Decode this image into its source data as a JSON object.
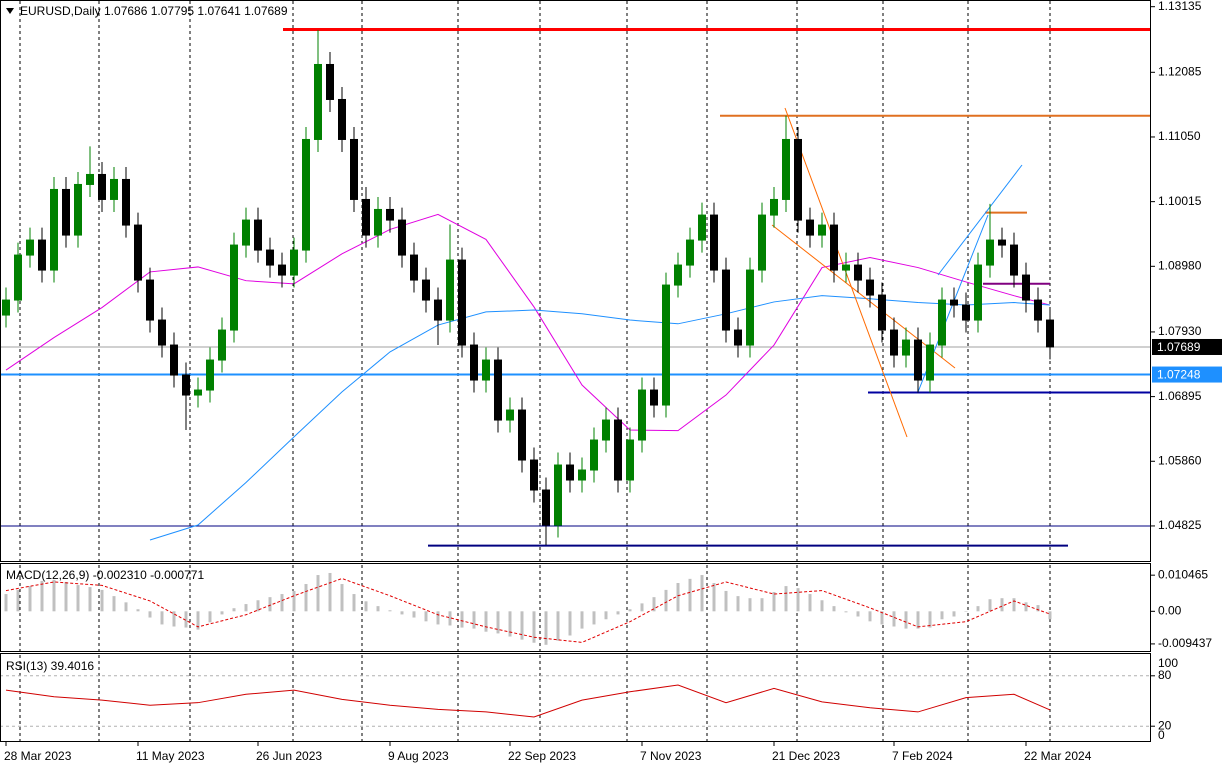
{
  "chart_data": [
    {
      "type": "candlestick",
      "title": "EURUSD,Daily  1.07686 1.07795 1.07641 1.07689",
      "categories": [
        "28 Mar 2023",
        null,
        null,
        null,
        null,
        null,
        null,
        null,
        null,
        null,
        null,
        "11 May 2023",
        null,
        null,
        null,
        null,
        null,
        null,
        null,
        null,
        null,
        "26 Jun 2023",
        null,
        null,
        null,
        null,
        null,
        null,
        null,
        null,
        null,
        null,
        "9 Aug 2023",
        null,
        null,
        null,
        null,
        null,
        null,
        null,
        null,
        null,
        "22 Sep 2023",
        null,
        null,
        null,
        null,
        null,
        null,
        null,
        null,
        null,
        null,
        "7 Nov 2023",
        null,
        null,
        null,
        null,
        null,
        null,
        null,
        null,
        null,
        null,
        "21 Dec 2023",
        null,
        null,
        null,
        null,
        null,
        null,
        null,
        null,
        null,
        "7 Feb 2024",
        null,
        null,
        null,
        null,
        null,
        null,
        null,
        null,
        null,
        null,
        "22 Mar 2024",
        null,
        null
      ],
      "open": [
        1.082,
        1.0844,
        1.0916,
        1.094,
        1.0892,
        1.1021,
        1.0948,
        1.1029,
        1.1045,
        1.1005,
        1.1037,
        1.0964,
        1.0876,
        1.0812,
        1.0772,
        1.0724,
        1.0692,
        1.07,
        1.0748,
        1.0796,
        1.0932,
        1.0972,
        1.0924,
        1.09,
        1.0884,
        1.0924,
        1.1101,
        1.1221,
        1.1165,
        1.1101,
        1.1005,
        1.0948,
        1.0989,
        1.0972,
        1.0916,
        1.0876,
        1.0844,
        1.0812,
        1.0908,
        1.0772,
        1.0716,
        1.0748,
        1.0652,
        1.0668,
        1.0588,
        1.054,
        1.0484,
        1.058,
        1.0556,
        1.0572,
        1.062,
        1.0652,
        1.0556,
        1.062,
        1.07,
        1.0676,
        1.0868,
        1.09,
        1.094,
        1.098,
        1.0892,
        1.0796,
        1.0772,
        1.0892,
        1.098,
        1.1005,
        1.1101,
        1.0972,
        1.0948,
        1.0964,
        1.0892,
        1.09,
        1.0876,
        1.0852,
        1.0796,
        1.0756,
        1.078,
        1.0716,
        1.0772,
        1.0844,
        1.0836,
        1.0812,
        1.09,
        1.094,
        1.0932,
        1.0884,
        1.0844,
        1.0812
      ],
      "high": [
        1.0864,
        1.0936,
        1.096,
        1.096,
        1.1041,
        1.1041,
        1.1049,
        1.109,
        1.1065,
        1.1057,
        1.1057,
        1.0984,
        1.0896,
        1.0832,
        1.0792,
        1.0744,
        1.072,
        1.0768,
        1.0816,
        1.0952,
        1.0992,
        1.0992,
        1.0944,
        1.092,
        1.0944,
        1.1121,
        1.1276,
        1.1241,
        1.1185,
        1.1121,
        1.1025,
        1.1009,
        1.1009,
        1.0992,
        1.0936,
        1.0896,
        1.0864,
        1.0965,
        1.0928,
        1.0792,
        1.0768,
        1.0768,
        1.0688,
        1.0688,
        1.0608,
        1.056,
        1.06,
        1.06,
        1.0592,
        1.064,
        1.0672,
        1.0672,
        1.064,
        1.072,
        1.072,
        1.0888,
        1.092,
        1.096,
        1.1,
        1.1,
        1.0912,
        1.0816,
        1.0912,
        1.1,
        1.1025,
        1.1139,
        1.1121,
        1.0992,
        1.0984,
        1.0984,
        1.092,
        1.092,
        1.0896,
        1.0872,
        1.0816,
        1.08,
        1.08,
        1.0792,
        1.0864,
        1.0864,
        1.0856,
        1.092,
        1.0998,
        1.096,
        1.0952,
        1.0904,
        1.0864,
        1.0832
      ],
      "low": [
        1.08,
        1.0824,
        1.0896,
        1.0872,
        1.0872,
        1.0928,
        1.0928,
        1.1009,
        1.0985,
        1.0985,
        1.0944,
        1.0856,
        1.0792,
        1.0752,
        1.0704,
        1.0636,
        1.0672,
        1.068,
        1.0728,
        1.0776,
        1.0912,
        1.0904,
        1.088,
        1.0864,
        1.0864,
        1.0904,
        1.1081,
        1.1145,
        1.1081,
        1.0985,
        1.0928,
        1.0928,
        1.0952,
        1.0896,
        1.0856,
        1.0824,
        1.0772,
        1.0792,
        1.0752,
        1.0696,
        1.0696,
        1.0632,
        1.0632,
        1.0568,
        1.052,
        1.0452,
        1.0464,
        1.0536,
        1.0536,
        1.0552,
        1.06,
        1.0536,
        1.0536,
        1.06,
        1.0656,
        1.0656,
        1.0848,
        1.088,
        1.092,
        1.0872,
        1.0776,
        1.0752,
        1.0752,
        1.0872,
        1.096,
        1.0985,
        1.0952,
        1.0928,
        1.0928,
        1.0872,
        1.0872,
        1.0856,
        1.0832,
        1.0776,
        1.0736,
        1.0736,
        1.0696,
        1.0696,
        1.0752,
        1.0816,
        1.0792,
        1.0792,
        1.088,
        1.0912,
        1.0864,
        1.0824,
        1.0792,
        1.0749
      ],
      "close": [
        1.0844,
        1.0916,
        1.094,
        1.0892,
        1.1021,
        1.0948,
        1.1029,
        1.1045,
        1.1005,
        1.1037,
        1.0964,
        1.0876,
        1.0812,
        1.0772,
        1.0724,
        1.0692,
        1.07,
        1.0748,
        1.0796,
        1.0932,
        1.0972,
        1.0924,
        1.09,
        1.0884,
        1.0924,
        1.1101,
        1.1221,
        1.1165,
        1.1101,
        1.1005,
        1.0948,
        1.0989,
        1.0972,
        1.0916,
        1.0876,
        1.0844,
        1.0812,
        1.0908,
        1.0772,
        1.0716,
        1.0748,
        1.0652,
        1.0668,
        1.0588,
        1.054,
        1.0484,
        1.058,
        1.0556,
        1.0572,
        1.062,
        1.0652,
        1.0556,
        1.062,
        1.07,
        1.0676,
        1.0868,
        1.09,
        1.094,
        1.098,
        1.0892,
        1.0796,
        1.0772,
        1.0892,
        1.098,
        1.1005,
        1.1101,
        1.0972,
        1.0948,
        1.0964,
        1.0892,
        1.09,
        1.0876,
        1.0852,
        1.0796,
        1.0756,
        1.078,
        1.0716,
        1.0772,
        1.0844,
        1.0836,
        1.0812,
        1.09,
        1.094,
        1.0932,
        1.0884,
        1.0844,
        1.0812,
        1.0769
      ],
      "bull_color": "#008000",
      "bear_color": "#000000",
      "series": [
        {
          "color": "#e000e0",
          "x": [
            0,
            4,
            8,
            12,
            16,
            20,
            24,
            28,
            32,
            36,
            40,
            44,
            48,
            52,
            56,
            60,
            64,
            68,
            72,
            76,
            80,
            84,
            87
          ],
          "values": [
            1.0732,
            1.0784,
            1.0832,
            1.0889,
            1.0897,
            1.0875,
            1.087,
            1.0918,
            1.0957,
            1.0981,
            1.0941,
            1.0833,
            1.0708,
            1.0636,
            1.0635,
            1.0692,
            1.0772,
            1.0896,
            1.0912,
            1.0896,
            1.0873,
            1.0851,
            1.0836
          ]
        },
        {
          "color": "#1e90ff",
          "x": [
            0,
            4,
            8,
            12,
            16,
            20,
            24,
            28,
            32,
            36,
            40,
            44,
            48,
            52,
            56,
            60,
            64,
            68,
            72,
            76,
            80,
            84,
            87
          ],
          "values": [
            null,
            null,
            null,
            1.046,
            1.0484,
            1.0552,
            1.0625,
            1.0697,
            1.0761,
            1.0804,
            1.0825,
            1.0828,
            1.0822,
            1.0812,
            1.0806,
            1.0822,
            1.0841,
            1.0851,
            1.0846,
            1.084,
            1.0836,
            1.084,
            1.0836
          ]
        }
      ],
      "levels": [
        {
          "value": 1.1277,
          "color": "#ff0000"
        },
        {
          "value": 1.1139,
          "color": "#e07020"
        },
        {
          "value": 1.0696,
          "color": "#0000a0"
        },
        {
          "value": 1.04825,
          "color": "#000080"
        },
        {
          "value": 1.0451,
          "color": "#000080"
        },
        {
          "value": 1.0984,
          "color": "#e07020"
        },
        {
          "value": 1.087,
          "color": "#800080"
        }
      ],
      "price_tags": [
        {
          "value": 1.07689,
          "color": "#000000",
          "line_color": "#a0a0a0"
        },
        {
          "value": 1.07248,
          "color": "#1e90ff",
          "line_color": "#1e90ff"
        }
      ],
      "xlim": [
        0,
        87
      ],
      "ylim": [
        1.0428,
        1.1321
      ],
      "yticks": [
        1.13135,
        1.12085,
        {
          "value": 1.1105,
          "label": "1.11050"
        },
        1.10015,
        {
          "value": 1.0898,
          "label": "1.08980"
        },
        {
          "value": 1.0793,
          "label": "1.07930"
        },
        1.06895,
        {
          "value": 1.0586,
          "label": "1.05860"
        },
        1.04825
      ]
    },
    {
      "type": "bar",
      "title": "MACD(12,26,9) -0.002310 -0.000771",
      "color": "#c0c0c0",
      "values": [
        0.005,
        0.0062,
        0.0073,
        0.0088,
        0.0091,
        0.0085,
        0.0076,
        0.007,
        0.0062,
        0.0044,
        0.0026,
        0.0006,
        -0.0018,
        -0.0038,
        -0.0044,
        -0.0047,
        -0.0053,
        -0.0032,
        -0.0009,
        0.0009,
        0.0021,
        0.0032,
        0.0041,
        0.005,
        0.0059,
        0.0079,
        0.0105,
        0.0111,
        0.0079,
        0.005,
        0.0029,
        0.0015,
        0.0003,
        -0.0009,
        -0.0018,
        -0.0029,
        -0.0038,
        -0.0041,
        -0.0047,
        -0.005,
        -0.0059,
        -0.0064,
        -0.0073,
        -0.0082,
        -0.0091,
        -0.0097,
        -0.0085,
        -0.007,
        -0.005,
        -0.0038,
        -0.0023,
        -0.0009,
        0.0006,
        0.0023,
        0.0041,
        0.0062,
        0.0082,
        0.0094,
        0.0105,
        0.0082,
        0.0059,
        0.0044,
        0.0038,
        0.0038,
        0.0056,
        0.0073,
        0.0067,
        0.005,
        0.0032,
        0.0015,
        -0.0003,
        -0.0015,
        -0.0029,
        -0.0038,
        -0.0044,
        -0.005,
        -0.005,
        -0.0047,
        -0.0023,
        -0.0015,
        0.0,
        0.0015,
        0.0035,
        0.0038,
        0.0038,
        0.0026,
        0.0018,
        -0.0023
      ],
      "series": [
        {
          "color": "#e00000",
          "x": [
            0,
            4,
            8,
            12,
            16,
            20,
            24,
            28,
            32,
            36,
            40,
            44,
            48,
            52,
            56,
            60,
            64,
            68,
            72,
            76,
            80,
            84,
            87
          ],
          "values": [
            0.006,
            0.0085,
            0.0075,
            0.003,
            -0.0045,
            -0.001,
            0.0045,
            0.0095,
            0.0045,
            -0.001,
            -0.0045,
            -0.0075,
            -0.009,
            -0.003,
            0.0045,
            0.0085,
            0.005,
            0.006,
            0.001,
            -0.0045,
            -0.003,
            0.003,
            -0.0008
          ]
        }
      ],
      "ylim": [
        -0.0112,
        0.0137
      ],
      "yticks": [
        0.010465,
        {
          "value": 0,
          "label": "0.00"
        },
        -0.009437
      ]
    },
    {
      "type": "line",
      "title": "RSI(13) 39.4016",
      "color": "#d00000",
      "x": [
        0,
        4,
        8,
        12,
        16,
        20,
        24,
        28,
        32,
        36,
        40,
        44,
        48,
        52,
        56,
        60,
        64,
        68,
        72,
        76,
        80,
        84,
        87
      ],
      "values": [
        63,
        55,
        51,
        45,
        48,
        58,
        63,
        52,
        45,
        40,
        37,
        31,
        51,
        61,
        69,
        48,
        65,
        49,
        42,
        37,
        54,
        58,
        39.4
      ],
      "ylim": [
        0,
        100
      ],
      "yticks": [
        100,
        80,
        20,
        0
      ]
    }
  ]
}
